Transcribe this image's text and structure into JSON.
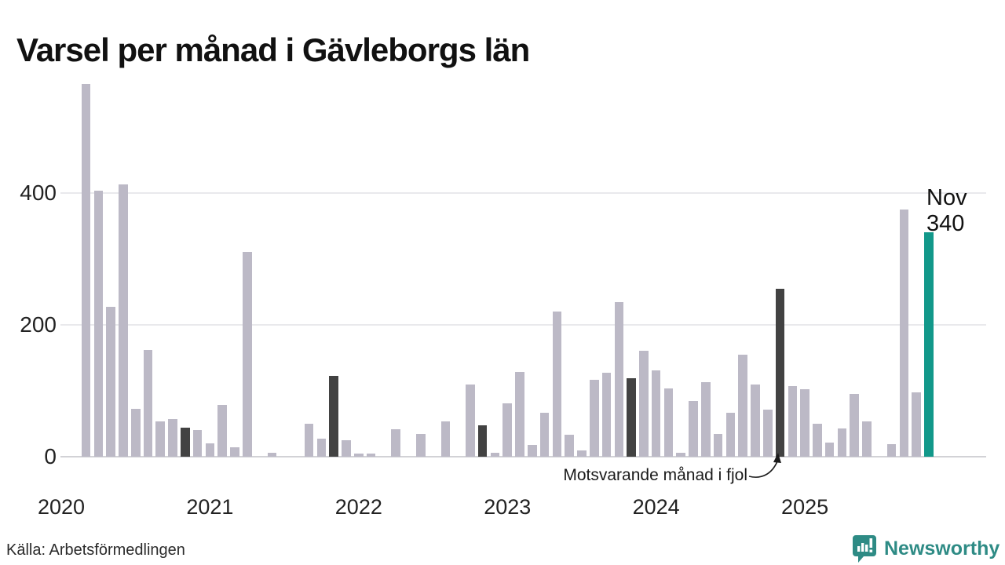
{
  "title": "Varsel per månad i Gävleborgs län",
  "source": "Källa: Arbetsförmedlingen",
  "branding": {
    "name": "Newsworthy",
    "logo_icon": "newsworthy-pin-icon",
    "brand_color": "#2E8B85"
  },
  "annotation": {
    "text": "Motsvarande månad i fjol"
  },
  "highlight": {
    "month_label": "Nov",
    "value_label": "340"
  },
  "colors": {
    "bar_normal": "#BCB9C6",
    "bar_last_year": "#424242",
    "bar_current": "#12988A",
    "gridline": "#E9E9EC",
    "axis_line": "#D2D2D6",
    "text": "#1A1A1A"
  },
  "chart_data": {
    "type": "bar",
    "title": "Varsel per månad i Gävleborgs län",
    "xlabel": "",
    "ylabel": "",
    "yticks": [
      0,
      200,
      400
    ],
    "ylim": [
      0,
      575
    ],
    "grid": true,
    "x_year_labels": [
      "2020",
      "2021",
      "2022",
      "2023",
      "2024",
      "2025"
    ],
    "legend_note": "dark bars = same month previous year (Motsvarande månad i fjol); teal bar = latest month (Nov 2025)",
    "months": [
      {
        "ym": "2020-03",
        "value": 565,
        "kind": "normal"
      },
      {
        "ym": "2020-04",
        "value": 403,
        "kind": "normal"
      },
      {
        "ym": "2020-05",
        "value": 227,
        "kind": "normal"
      },
      {
        "ym": "2020-06",
        "value": 413,
        "kind": "normal"
      },
      {
        "ym": "2020-07",
        "value": 73,
        "kind": "normal"
      },
      {
        "ym": "2020-08",
        "value": 162,
        "kind": "normal"
      },
      {
        "ym": "2020-09",
        "value": 53,
        "kind": "normal"
      },
      {
        "ym": "2020-10",
        "value": 57,
        "kind": "normal"
      },
      {
        "ym": "2020-11",
        "value": 44,
        "kind": "lastyear"
      },
      {
        "ym": "2020-12",
        "value": 40,
        "kind": "normal"
      },
      {
        "ym": "2021-01",
        "value": 20,
        "kind": "normal"
      },
      {
        "ym": "2021-02",
        "value": 78,
        "kind": "normal"
      },
      {
        "ym": "2021-03",
        "value": 14,
        "kind": "normal"
      },
      {
        "ym": "2021-04",
        "value": 310,
        "kind": "normal"
      },
      {
        "ym": "2021-05",
        "value": 0,
        "kind": "normal"
      },
      {
        "ym": "2021-06",
        "value": 6,
        "kind": "normal"
      },
      {
        "ym": "2021-07",
        "value": 0,
        "kind": "normal"
      },
      {
        "ym": "2021-08",
        "value": 0,
        "kind": "normal"
      },
      {
        "ym": "2021-09",
        "value": 50,
        "kind": "normal"
      },
      {
        "ym": "2021-10",
        "value": 27,
        "kind": "normal"
      },
      {
        "ym": "2021-11",
        "value": 123,
        "kind": "lastyear"
      },
      {
        "ym": "2021-12",
        "value": 25,
        "kind": "normal"
      },
      {
        "ym": "2022-01",
        "value": 5,
        "kind": "normal"
      },
      {
        "ym": "2022-02",
        "value": 5,
        "kind": "normal"
      },
      {
        "ym": "2022-03",
        "value": 0,
        "kind": "normal"
      },
      {
        "ym": "2022-04",
        "value": 42,
        "kind": "normal"
      },
      {
        "ym": "2022-05",
        "value": 0,
        "kind": "normal"
      },
      {
        "ym": "2022-06",
        "value": 35,
        "kind": "normal"
      },
      {
        "ym": "2022-07",
        "value": 0,
        "kind": "normal"
      },
      {
        "ym": "2022-08",
        "value": 53,
        "kind": "normal"
      },
      {
        "ym": "2022-09",
        "value": 0,
        "kind": "normal"
      },
      {
        "ym": "2022-10",
        "value": 110,
        "kind": "normal"
      },
      {
        "ym": "2022-11",
        "value": 48,
        "kind": "lastyear"
      },
      {
        "ym": "2022-12",
        "value": 6,
        "kind": "normal"
      },
      {
        "ym": "2023-01",
        "value": 81,
        "kind": "normal"
      },
      {
        "ym": "2023-02",
        "value": 128,
        "kind": "normal"
      },
      {
        "ym": "2023-03",
        "value": 18,
        "kind": "normal"
      },
      {
        "ym": "2023-04",
        "value": 67,
        "kind": "normal"
      },
      {
        "ym": "2023-05",
        "value": 220,
        "kind": "normal"
      },
      {
        "ym": "2023-06",
        "value": 33,
        "kind": "normal"
      },
      {
        "ym": "2023-07",
        "value": 10,
        "kind": "normal"
      },
      {
        "ym": "2023-08",
        "value": 116,
        "kind": "normal"
      },
      {
        "ym": "2023-09",
        "value": 127,
        "kind": "normal"
      },
      {
        "ym": "2023-10",
        "value": 234,
        "kind": "normal"
      },
      {
        "ym": "2023-11",
        "value": 119,
        "kind": "lastyear"
      },
      {
        "ym": "2023-12",
        "value": 160,
        "kind": "normal"
      },
      {
        "ym": "2024-01",
        "value": 131,
        "kind": "normal"
      },
      {
        "ym": "2024-02",
        "value": 103,
        "kind": "normal"
      },
      {
        "ym": "2024-03",
        "value": 6,
        "kind": "normal"
      },
      {
        "ym": "2024-04",
        "value": 85,
        "kind": "normal"
      },
      {
        "ym": "2024-05",
        "value": 113,
        "kind": "normal"
      },
      {
        "ym": "2024-06",
        "value": 35,
        "kind": "normal"
      },
      {
        "ym": "2024-07",
        "value": 67,
        "kind": "normal"
      },
      {
        "ym": "2024-08",
        "value": 155,
        "kind": "normal"
      },
      {
        "ym": "2024-09",
        "value": 109,
        "kind": "normal"
      },
      {
        "ym": "2024-10",
        "value": 71,
        "kind": "normal"
      },
      {
        "ym": "2024-11",
        "value": 254,
        "kind": "lastyear"
      },
      {
        "ym": "2024-12",
        "value": 107,
        "kind": "normal"
      },
      {
        "ym": "2025-01",
        "value": 102,
        "kind": "normal"
      },
      {
        "ym": "2025-02",
        "value": 50,
        "kind": "normal"
      },
      {
        "ym": "2025-03",
        "value": 21,
        "kind": "normal"
      },
      {
        "ym": "2025-04",
        "value": 43,
        "kind": "normal"
      },
      {
        "ym": "2025-05",
        "value": 95,
        "kind": "normal"
      },
      {
        "ym": "2025-06",
        "value": 54,
        "kind": "normal"
      },
      {
        "ym": "2025-07",
        "value": 0,
        "kind": "normal"
      },
      {
        "ym": "2025-08",
        "value": 19,
        "kind": "normal"
      },
      {
        "ym": "2025-09",
        "value": 375,
        "kind": "normal"
      },
      {
        "ym": "2025-10",
        "value": 97,
        "kind": "normal"
      },
      {
        "ym": "2025-11",
        "value": 340,
        "kind": "current"
      }
    ]
  }
}
